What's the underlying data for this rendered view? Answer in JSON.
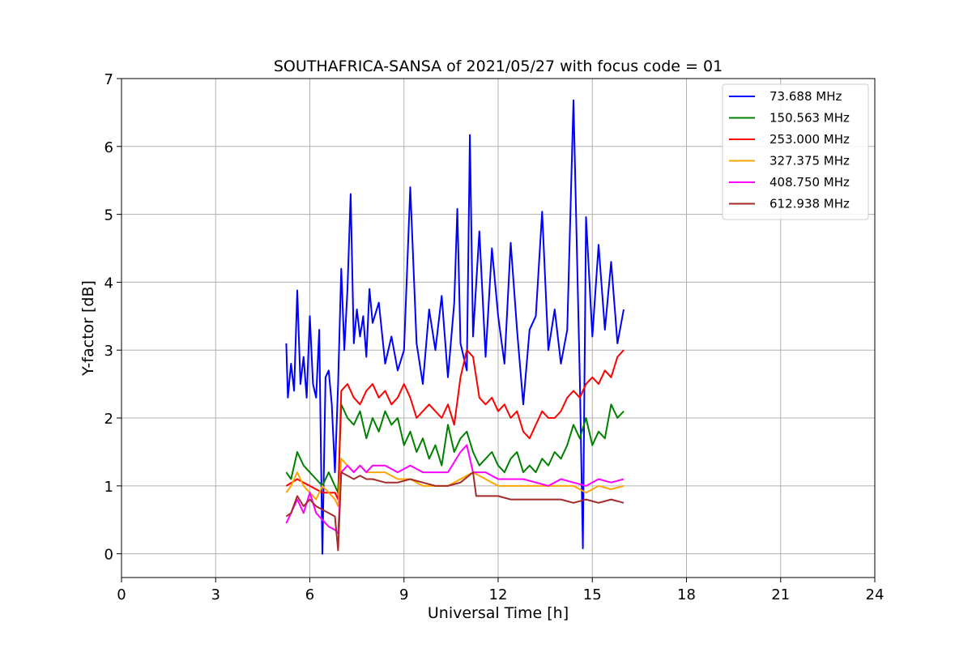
{
  "chart_data": {
    "type": "line",
    "title": "SOUTHAFRICA-SANSA of 2021/05/27 with focus code = 01",
    "xlabel": "Universal Time [h]",
    "ylabel": "Y-factor [dB]",
    "xlim": [
      0,
      24
    ],
    "ylim": [
      -0.35,
      7
    ],
    "xticks": [
      "0",
      "3",
      "6",
      "9",
      "12",
      "15",
      "18",
      "21",
      "24"
    ],
    "yticks": [
      "0",
      "1",
      "2",
      "3",
      "4",
      "5",
      "6",
      "7"
    ],
    "grid": true,
    "legend_position": "top-right",
    "series": [
      {
        "name": " 73.688 MHz",
        "color": "#0000ff",
        "x": [
          5.25,
          5.3,
          5.4,
          5.5,
          5.6,
          5.7,
          5.8,
          5.9,
          6.0,
          6.1,
          6.2,
          6.3,
          6.4,
          6.5,
          6.6,
          6.7,
          6.8,
          6.9,
          7.0,
          7.1,
          7.2,
          7.3,
          7.4,
          7.5,
          7.6,
          7.7,
          7.8,
          7.9,
          8.0,
          8.2,
          8.4,
          8.6,
          8.8,
          9.0,
          9.2,
          9.4,
          9.6,
          9.8,
          10.0,
          10.2,
          10.4,
          10.6,
          10.7,
          10.8,
          11.0,
          11.1,
          11.2,
          11.4,
          11.6,
          11.8,
          12.0,
          12.2,
          12.4,
          12.6,
          12.8,
          13.0,
          13.2,
          13.4,
          13.6,
          13.8,
          14.0,
          14.2,
          14.4,
          14.6,
          14.7,
          14.8,
          15.0,
          15.2,
          15.4,
          15.6,
          15.8,
          16.0
        ],
        "y": [
          3.1,
          2.3,
          2.8,
          2.4,
          3.88,
          2.5,
          2.9,
          2.3,
          3.5,
          2.5,
          2.3,
          3.3,
          0.0,
          2.6,
          2.7,
          2.2,
          1.2,
          2.5,
          4.2,
          3.0,
          3.9,
          5.3,
          3.1,
          3.6,
          3.2,
          3.5,
          2.9,
          3.9,
          3.4,
          3.7,
          2.8,
          3.2,
          2.7,
          3.0,
          5.4,
          3.1,
          2.5,
          3.6,
          3.0,
          3.8,
          2.6,
          3.7,
          5.08,
          3.1,
          2.7,
          6.17,
          3.2,
          4.75,
          2.9,
          4.5,
          3.5,
          2.8,
          4.58,
          3.3,
          2.2,
          3.3,
          3.5,
          5.04,
          3.0,
          3.6,
          2.8,
          3.3,
          6.68,
          2.6,
          0.08,
          4.96,
          3.2,
          4.55,
          3.3,
          4.3,
          3.1,
          3.6
        ]
      },
      {
        "name": "150.563 MHz",
        "color": "#008000",
        "x": [
          5.25,
          5.4,
          5.6,
          5.8,
          6.0,
          6.2,
          6.4,
          6.6,
          6.8,
          6.9,
          7.0,
          7.2,
          7.4,
          7.6,
          7.8,
          8.0,
          8.2,
          8.4,
          8.6,
          8.8,
          9.0,
          9.2,
          9.4,
          9.6,
          9.8,
          10.0,
          10.2,
          10.4,
          10.6,
          10.8,
          11.0,
          11.2,
          11.4,
          11.6,
          11.8,
          12.0,
          12.2,
          12.4,
          12.6,
          12.8,
          13.0,
          13.2,
          13.4,
          13.6,
          13.8,
          14.0,
          14.2,
          14.4,
          14.6,
          14.8,
          15.0,
          15.2,
          15.4,
          15.6,
          15.8,
          16.0
        ],
        "y": [
          1.2,
          1.1,
          1.5,
          1.3,
          1.2,
          1.1,
          1.0,
          1.2,
          1.0,
          0.9,
          2.2,
          2.0,
          1.9,
          2.1,
          1.7,
          2.0,
          1.8,
          2.1,
          1.9,
          2.0,
          1.6,
          1.8,
          1.5,
          1.7,
          1.4,
          1.6,
          1.3,
          1.9,
          1.5,
          1.7,
          1.8,
          1.5,
          1.3,
          1.4,
          1.5,
          1.3,
          1.2,
          1.4,
          1.5,
          1.2,
          1.3,
          1.2,
          1.4,
          1.3,
          1.5,
          1.4,
          1.6,
          1.9,
          1.7,
          2.0,
          1.6,
          1.8,
          1.7,
          2.2,
          2.0,
          2.1
        ]
      },
      {
        "name": "253.000 MHz",
        "color": "#ff0000",
        "x": [
          5.25,
          5.6,
          6.0,
          6.4,
          6.8,
          6.9,
          7.0,
          7.2,
          7.4,
          7.6,
          7.8,
          8.0,
          8.2,
          8.4,
          8.6,
          8.8,
          9.0,
          9.2,
          9.4,
          9.6,
          9.8,
          10.0,
          10.2,
          10.4,
          10.6,
          10.8,
          11.0,
          11.2,
          11.4,
          11.6,
          11.8,
          12.0,
          12.2,
          12.4,
          12.6,
          12.8,
          13.0,
          13.2,
          13.4,
          13.6,
          13.8,
          14.0,
          14.2,
          14.4,
          14.6,
          14.8,
          15.0,
          15.2,
          15.4,
          15.6,
          15.8,
          16.0
        ],
        "y": [
          1.0,
          1.1,
          1.0,
          0.9,
          0.9,
          0.8,
          2.4,
          2.5,
          2.3,
          2.2,
          2.4,
          2.5,
          2.3,
          2.4,
          2.2,
          2.3,
          2.5,
          2.3,
          2.0,
          2.1,
          2.2,
          2.1,
          2.0,
          2.2,
          1.9,
          2.6,
          3.0,
          2.9,
          2.3,
          2.2,
          2.3,
          2.1,
          2.2,
          2.0,
          2.1,
          1.8,
          1.7,
          1.9,
          2.1,
          2.0,
          2.0,
          2.1,
          2.3,
          2.4,
          2.3,
          2.5,
          2.6,
          2.5,
          2.7,
          2.6,
          2.9,
          3.0
        ]
      },
      {
        "name": "327.375 MHz",
        "color": "#ffa500",
        "x": [
          5.25,
          5.4,
          5.6,
          5.8,
          6.0,
          6.2,
          6.4,
          6.6,
          6.8,
          6.9,
          7.0,
          7.2,
          7.4,
          7.6,
          7.8,
          8.0,
          8.4,
          8.8,
          9.2,
          9.6,
          10.0,
          10.4,
          10.8,
          11.2,
          11.6,
          12.0,
          12.4,
          12.8,
          13.2,
          13.6,
          14.0,
          14.4,
          14.8,
          15.2,
          15.6,
          16.0
        ],
        "y": [
          0.9,
          1.0,
          1.2,
          1.0,
          0.9,
          0.8,
          1.0,
          0.9,
          0.8,
          0.7,
          1.4,
          1.3,
          1.2,
          1.3,
          1.2,
          1.2,
          1.2,
          1.1,
          1.1,
          1.0,
          1.0,
          1.0,
          1.1,
          1.2,
          1.1,
          1.0,
          1.0,
          1.0,
          1.0,
          1.0,
          1.0,
          1.0,
          0.9,
          1.0,
          0.95,
          1.0
        ]
      },
      {
        "name": "408.750 MHz",
        "color": "#ff00ff",
        "x": [
          5.25,
          5.4,
          5.6,
          5.8,
          6.0,
          6.2,
          6.4,
          6.6,
          6.8,
          6.9,
          7.0,
          7.2,
          7.4,
          7.6,
          7.8,
          8.0,
          8.4,
          8.8,
          9.2,
          9.6,
          10.0,
          10.4,
          10.8,
          11.0,
          11.2,
          11.6,
          12.0,
          12.4,
          12.8,
          13.2,
          13.6,
          14.0,
          14.4,
          14.8,
          15.2,
          15.6,
          16.0
        ],
        "y": [
          0.45,
          0.6,
          0.8,
          0.6,
          0.9,
          0.6,
          0.5,
          0.4,
          0.35,
          0.3,
          1.2,
          1.3,
          1.2,
          1.3,
          1.2,
          1.3,
          1.3,
          1.2,
          1.3,
          1.2,
          1.2,
          1.2,
          1.5,
          1.6,
          1.2,
          1.2,
          1.1,
          1.1,
          1.1,
          1.05,
          1.0,
          1.1,
          1.05,
          1.0,
          1.1,
          1.05,
          1.1
        ]
      },
      {
        "name": "612.938 MHz",
        "color": "#a52a2a",
        "x": [
          5.25,
          5.4,
          5.6,
          5.8,
          6.0,
          6.2,
          6.4,
          6.6,
          6.8,
          6.9,
          7.0,
          7.2,
          7.4,
          7.6,
          7.8,
          8.0,
          8.4,
          8.8,
          9.2,
          9.6,
          10.0,
          10.4,
          10.8,
          11.2,
          11.3,
          11.6,
          12.0,
          12.4,
          12.8,
          13.2,
          13.6,
          14.0,
          14.4,
          14.8,
          15.2,
          15.6,
          16.0
        ],
        "y": [
          0.55,
          0.6,
          0.85,
          0.7,
          0.8,
          0.7,
          0.65,
          0.6,
          0.55,
          0.05,
          1.2,
          1.15,
          1.1,
          1.15,
          1.1,
          1.1,
          1.05,
          1.05,
          1.1,
          1.05,
          1.0,
          1.0,
          1.05,
          1.2,
          0.85,
          0.85,
          0.85,
          0.8,
          0.8,
          0.8,
          0.8,
          0.8,
          0.75,
          0.8,
          0.75,
          0.8,
          0.75
        ]
      }
    ]
  }
}
